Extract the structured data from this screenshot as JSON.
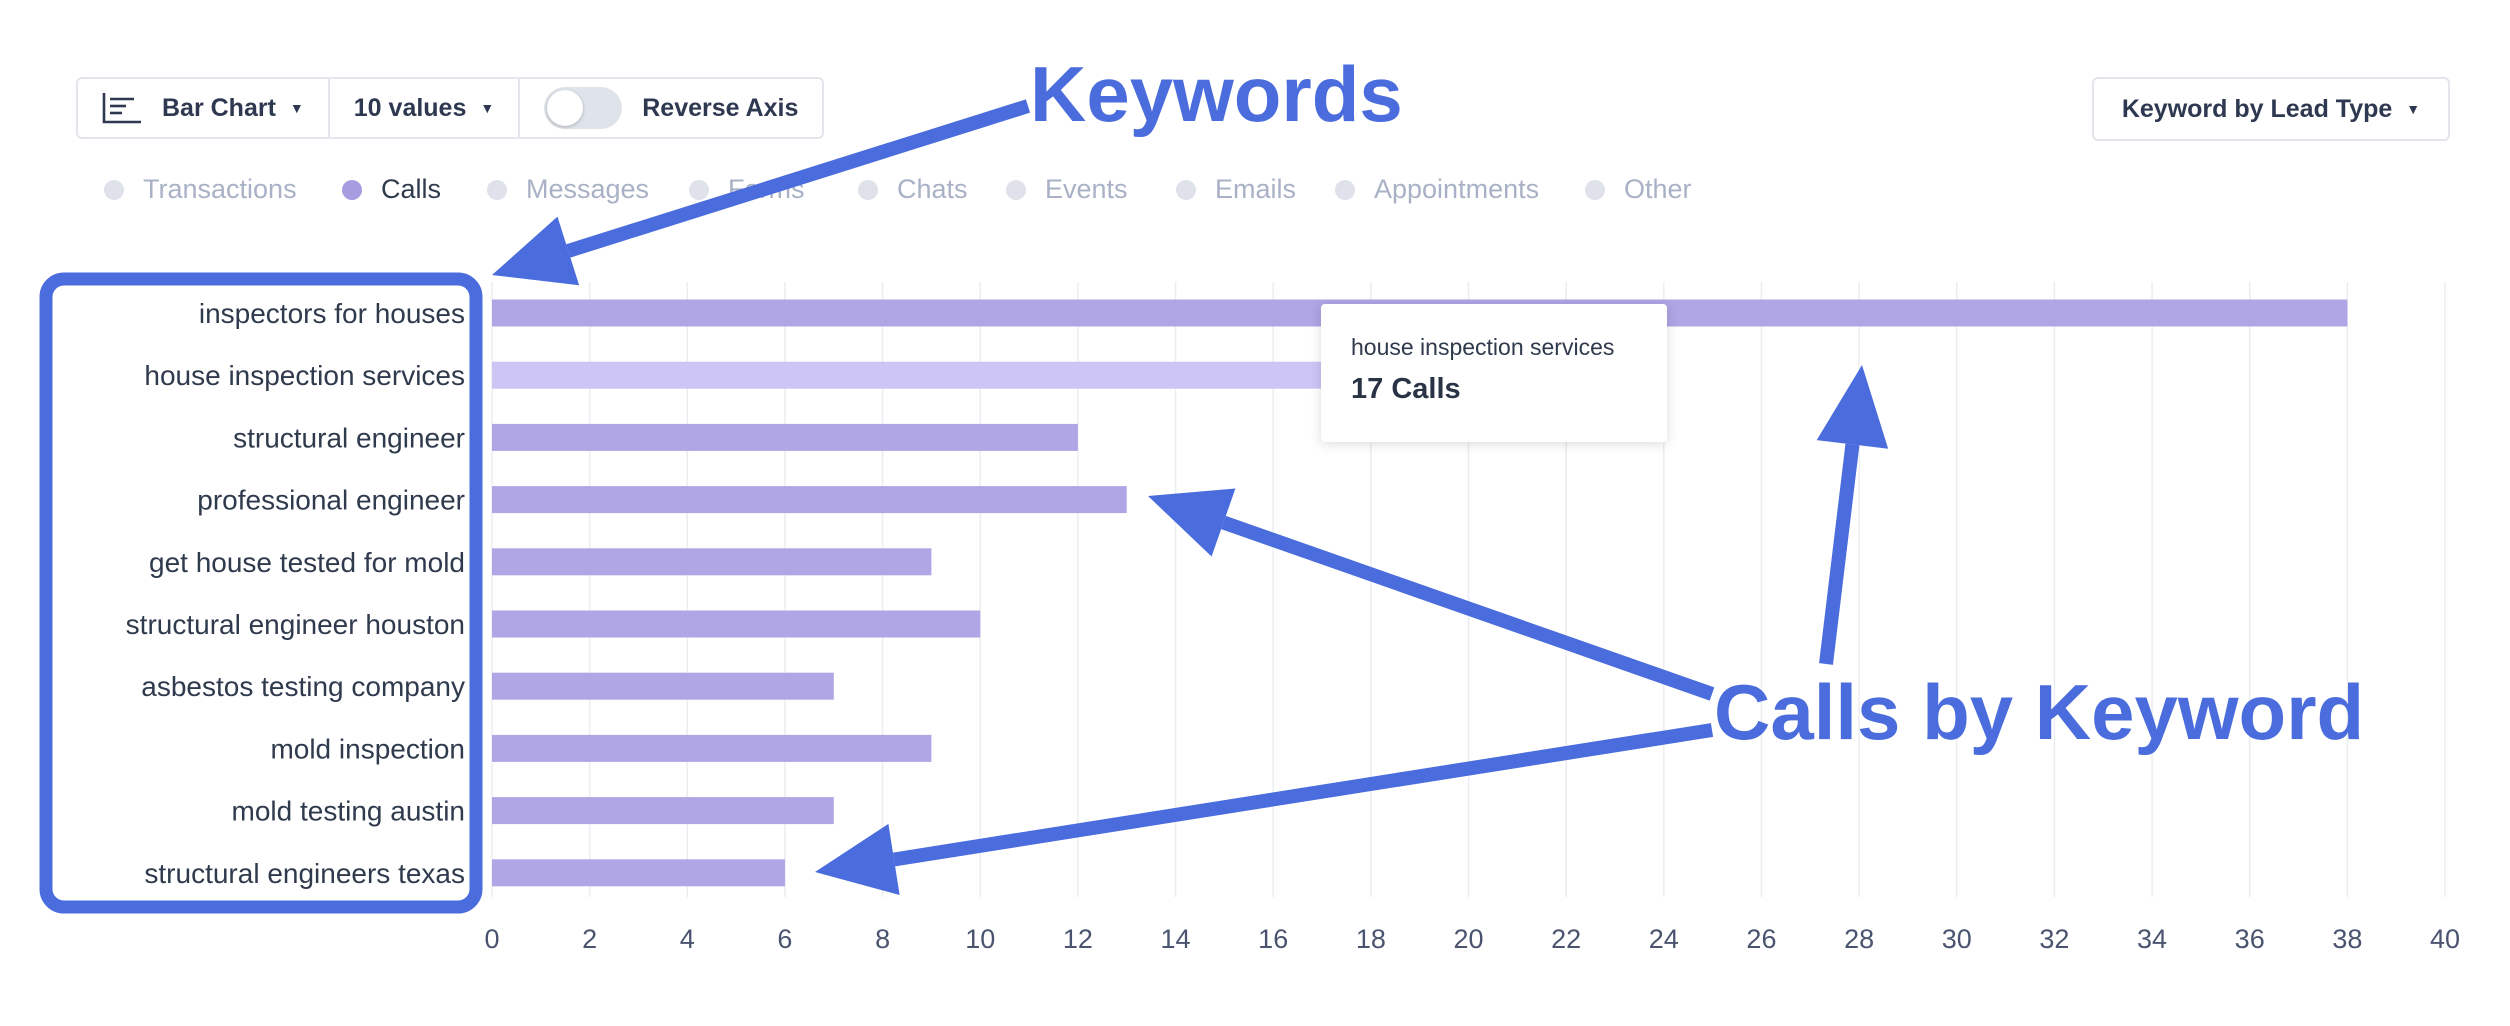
{
  "toolbar": {
    "chart_type_label": "Bar Chart",
    "values_label": "10 values",
    "reverse_axis_label": "Reverse Axis",
    "reverse_axis_on": false,
    "grouping_label": "Keyword by Lead Type",
    "chart_icon": "horizontal-bar-chart-icon",
    "dropdown_icon": "caret-down-icon"
  },
  "legend": [
    {
      "label": "Transactions",
      "active": false
    },
    {
      "label": "Calls",
      "active": true
    },
    {
      "label": "Messages",
      "active": false
    },
    {
      "label": "Forms",
      "active": false
    },
    {
      "label": "Chats",
      "active": false
    },
    {
      "label": "Events",
      "active": false
    },
    {
      "label": "Emails",
      "active": false
    },
    {
      "label": "Appointments",
      "active": false
    },
    {
      "label": "Other",
      "active": false
    }
  ],
  "chart_data": {
    "type": "bar",
    "orientation": "horizontal",
    "categories": [
      "inspectors for houses",
      "house inspection services",
      "structural engineer",
      "professional engineer",
      "get house tested for mold",
      "structural engineer houston",
      "asbestos testing company",
      "mold inspection",
      "mold testing austin",
      "structural engineers texas"
    ],
    "series": [
      {
        "name": "Calls",
        "values": [
          38,
          17,
          12,
          13,
          9,
          10,
          7,
          9,
          7,
          6
        ]
      }
    ],
    "xlim": [
      0,
      40
    ],
    "x_ticks": [
      0,
      2,
      4,
      6,
      8,
      10,
      12,
      14,
      16,
      18,
      20,
      22,
      24,
      26,
      28,
      30,
      32,
      34,
      36,
      38,
      40
    ],
    "grid": true,
    "highlighted_index": 1
  },
  "tooltip": {
    "keyword": "house inspection services",
    "value_text": "17 Calls"
  },
  "annotations": {
    "keywords_label": "Keywords",
    "calls_label": "Calls by Keyword"
  },
  "colors": {
    "bar": "#b0a5e5",
    "bar_highlight": "#cdc6f5",
    "annotation": "#4a6cdc",
    "legend_active_dot": "#a79ce0",
    "legend_inactive_dot": "#dfe2ea",
    "legend_inactive_text": "#a9b1c6",
    "legend_active_text": "#2f3a4d",
    "grid": "#ecedf1",
    "axis_text": "#4a5470"
  }
}
